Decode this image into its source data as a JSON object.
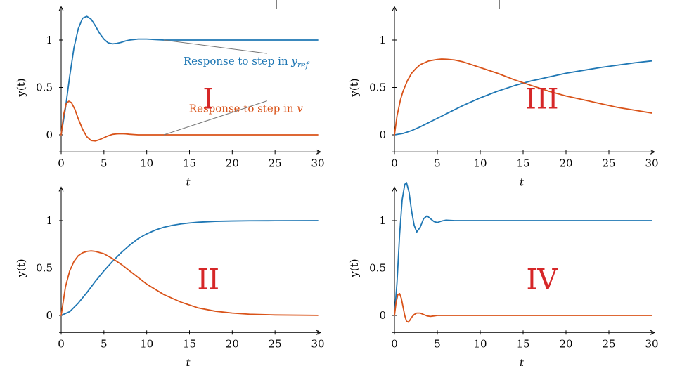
{
  "colors": {
    "series_blue": "#1f77b4",
    "series_orange": "#d95319",
    "roman_numeral": "#d62728",
    "axis": "#000000",
    "leader": "#777777"
  },
  "chart_data": [
    {
      "type": "line",
      "panel": "I",
      "xlabel": "t",
      "ylabel": "y(t)",
      "xlim": [
        0,
        30
      ],
      "ylim": [
        -0.18,
        1.3
      ],
      "xticks": [
        0,
        5,
        10,
        15,
        20,
        25,
        30
      ],
      "yticks": [
        0,
        0.5,
        1
      ],
      "ytick_labels": [
        "0",
        "0.5",
        "1"
      ],
      "grid": false,
      "series": [
        {
          "color": "#1f77b4",
          "x": [
            0,
            0.5,
            1,
            1.5,
            2,
            2.5,
            3,
            3.5,
            4,
            4.5,
            5,
            5.5,
            6,
            6.5,
            7,
            7.5,
            8,
            9,
            10,
            11,
            12,
            14,
            16,
            20,
            25,
            30
          ],
          "y": [
            0,
            0.28,
            0.62,
            0.92,
            1.12,
            1.23,
            1.25,
            1.22,
            1.15,
            1.07,
            1.01,
            0.97,
            0.96,
            0.965,
            0.975,
            0.99,
            1.0,
            1.01,
            1.01,
            1.005,
            1.0,
            1.0,
            1.0,
            1.0,
            1.0,
            1.0
          ]
        },
        {
          "color": "#d95319",
          "x": [
            0,
            0.3,
            0.6,
            0.9,
            1.2,
            1.6,
            2,
            2.5,
            3,
            3.5,
            4,
            4.5,
            5,
            5.5,
            6,
            6.5,
            7,
            7.5,
            8,
            8.5,
            9,
            10,
            11,
            12,
            14,
            20,
            30
          ],
          "y": [
            0,
            0.22,
            0.33,
            0.355,
            0.34,
            0.27,
            0.17,
            0.06,
            -0.02,
            -0.06,
            -0.065,
            -0.05,
            -0.03,
            -0.01,
            0.005,
            0.01,
            0.012,
            0.01,
            0.006,
            0.003,
            0.0,
            0.0,
            0.0,
            0.0,
            0.0,
            0.0,
            0.0
          ]
        }
      ],
      "annotations": [
        {
          "text": "Response to step in ",
          "math": "y",
          "sub": "ref",
          "color": "#1f77b4",
          "point": [
            12,
            1.0
          ],
          "label_at": [
            21.6,
            0.74
          ]
        },
        {
          "text": "Response to step in ",
          "math": "v",
          "color": "#d95319",
          "point": [
            12,
            0.0
          ],
          "label_at": [
            21.6,
            0.24
          ]
        }
      ],
      "roman": "I",
      "roman_at": [
        17.2,
        0.38
      ]
    },
    {
      "type": "line",
      "panel": "II",
      "xlabel": "t",
      "ylabel": "y(t)",
      "xlim": [
        0,
        30
      ],
      "ylim": [
        -0.18,
        1.3
      ],
      "xticks": [
        0,
        5,
        10,
        15,
        20,
        25,
        30
      ],
      "yticks": [
        0,
        0.5,
        1
      ],
      "ytick_labels": [
        "0",
        "0.5",
        "1"
      ],
      "grid": false,
      "series": [
        {
          "color": "#1f77b4",
          "x": [
            0,
            1,
            2,
            3,
            4,
            5,
            6,
            7,
            8,
            9,
            10,
            11,
            12,
            13,
            14,
            15,
            16,
            18,
            20,
            22,
            25,
            30
          ],
          "y": [
            0,
            0.04,
            0.13,
            0.24,
            0.36,
            0.47,
            0.57,
            0.66,
            0.74,
            0.81,
            0.86,
            0.9,
            0.93,
            0.95,
            0.965,
            0.975,
            0.983,
            0.992,
            0.996,
            0.998,
            0.999,
            1.0
          ]
        },
        {
          "color": "#d95319",
          "x": [
            0,
            0.5,
            1,
            1.5,
            2,
            2.5,
            3,
            3.5,
            4,
            5,
            6,
            7,
            8,
            9,
            10,
            12,
            14,
            16,
            18,
            20,
            22,
            25,
            30
          ],
          "y": [
            0,
            0.3,
            0.47,
            0.57,
            0.63,
            0.66,
            0.675,
            0.68,
            0.675,
            0.65,
            0.6,
            0.54,
            0.47,
            0.4,
            0.33,
            0.22,
            0.14,
            0.08,
            0.045,
            0.025,
            0.013,
            0.005,
            0.001
          ]
        }
      ],
      "annotations": [],
      "roman": "II",
      "roman_at": [
        17.2,
        0.38
      ]
    },
    {
      "type": "line",
      "panel": "III",
      "xlabel": "t",
      "ylabel": "y(t)",
      "xlim": [
        0,
        30
      ],
      "ylim": [
        -0.18,
        1.3
      ],
      "xticks": [
        0,
        5,
        10,
        15,
        20,
        25,
        30
      ],
      "yticks": [
        0,
        0.5,
        1
      ],
      "ytick_labels": [
        "0",
        "0.5",
        "1"
      ],
      "grid": false,
      "series": [
        {
          "color": "#1f77b4",
          "x": [
            0,
            1,
            2,
            3,
            4,
            5,
            6,
            7,
            8,
            10,
            12,
            14,
            16,
            18,
            20,
            22,
            24,
            26,
            28,
            30
          ],
          "y": [
            0,
            0.015,
            0.045,
            0.085,
            0.13,
            0.175,
            0.22,
            0.265,
            0.31,
            0.39,
            0.46,
            0.52,
            0.57,
            0.61,
            0.65,
            0.68,
            0.71,
            0.735,
            0.76,
            0.78
          ]
        },
        {
          "color": "#d95319",
          "x": [
            0,
            0.3,
            0.7,
            1,
            1.5,
            2,
            2.5,
            3,
            4,
            5,
            5.5,
            6,
            7,
            8,
            10,
            12,
            14,
            16,
            18,
            20,
            22,
            24,
            26,
            28,
            30
          ],
          "y": [
            0,
            0.2,
            0.37,
            0.46,
            0.57,
            0.65,
            0.7,
            0.74,
            0.78,
            0.795,
            0.8,
            0.798,
            0.79,
            0.77,
            0.71,
            0.65,
            0.58,
            0.52,
            0.46,
            0.41,
            0.37,
            0.33,
            0.29,
            0.26,
            0.23
          ]
        }
      ],
      "annotations": [],
      "roman": "III",
      "roman_at": [
        17.2,
        0.38
      ]
    },
    {
      "type": "line",
      "panel": "IV",
      "xlabel": "t",
      "ylabel": "y(t)",
      "xlim": [
        0,
        30
      ],
      "ylim": [
        -0.18,
        1.3
      ],
      "xticks": [
        0,
        5,
        10,
        15,
        20,
        25,
        30
      ],
      "yticks": [
        0,
        0.5,
        1
      ],
      "ytick_labels": [
        "0",
        "0.5",
        "1"
      ],
      "grid": false,
      "series": [
        {
          "color": "#1f77b4",
          "x": [
            0,
            0.3,
            0.6,
            0.9,
            1.2,
            1.4,
            1.7,
            2,
            2.3,
            2.6,
            3,
            3.4,
            3.8,
            4.2,
            4.6,
            5,
            5.5,
            6,
            7,
            8,
            10,
            30
          ],
          "y": [
            0,
            0.35,
            0.85,
            1.22,
            1.38,
            1.4,
            1.3,
            1.1,
            0.95,
            0.88,
            0.93,
            1.02,
            1.05,
            1.02,
            0.99,
            0.98,
            0.995,
            1.005,
            1.0,
            1.0,
            1.0,
            1.0
          ]
        },
        {
          "color": "#d95319",
          "x": [
            0,
            0.2,
            0.4,
            0.6,
            0.8,
            1,
            1.2,
            1.4,
            1.6,
            1.8,
            2,
            2.3,
            2.6,
            3,
            3.4,
            3.8,
            4.2,
            4.6,
            5,
            6,
            7,
            10,
            30
          ],
          "y": [
            0,
            0.14,
            0.22,
            0.23,
            0.18,
            0.09,
            0.0,
            -0.06,
            -0.07,
            -0.05,
            -0.02,
            0.01,
            0.025,
            0.025,
            0.01,
            -0.005,
            -0.01,
            -0.005,
            0.0,
            0.0,
            0.0,
            0.0,
            0.0
          ]
        }
      ],
      "annotations": [],
      "roman": "IV",
      "roman_at": [
        17.2,
        0.38
      ]
    }
  ]
}
